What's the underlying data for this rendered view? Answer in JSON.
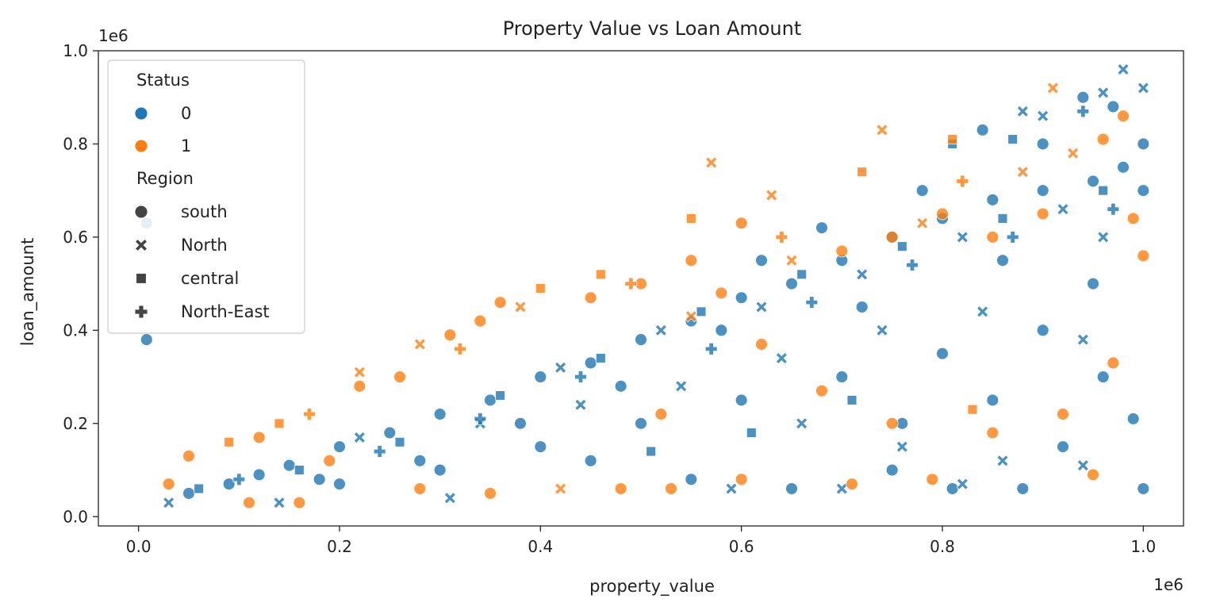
{
  "chart_data": {
    "type": "scatter",
    "title": "Property Value vs Loan Amount",
    "xlabel": "property_value",
    "ylabel": "loan_amount",
    "x_scale_label": "1e6",
    "y_scale_label": "1e6",
    "xlim": [
      -0.04,
      1.04
    ],
    "ylim": [
      -0.02,
      1.0
    ],
    "xticks": [
      0.0,
      0.2,
      0.4,
      0.6,
      0.8,
      1.0
    ],
    "xtick_labels": [
      "0.0",
      "0.2",
      "0.4",
      "0.6",
      "0.8",
      "1.0"
    ],
    "yticks": [
      0.0,
      0.2,
      0.4,
      0.6,
      0.8,
      1.0
    ],
    "ytick_labels": [
      "0.0",
      "0.2",
      "0.4",
      "0.6",
      "0.8",
      "1.0"
    ],
    "grid": false,
    "legend_position": "top-left",
    "hue": {
      "title": "Status",
      "levels": [
        {
          "label": "0",
          "color": "#1f77b4"
        },
        {
          "label": "1",
          "color": "#ff7f0e"
        }
      ]
    },
    "style": {
      "title": "Region",
      "levels": [
        {
          "label": "south",
          "marker": "circle"
        },
        {
          "label": "North",
          "marker": "x"
        },
        {
          "label": "central",
          "marker": "square"
        },
        {
          "label": "North-East",
          "marker": "plus"
        }
      ]
    },
    "series": [
      {
        "status": "0",
        "region": "south",
        "points": [
          [
            0.008,
            0.63
          ],
          [
            0.008,
            0.38
          ],
          [
            0.05,
            0.05
          ],
          [
            0.09,
            0.07
          ],
          [
            0.12,
            0.09
          ],
          [
            0.15,
            0.11
          ],
          [
            0.2,
            0.15
          ],
          [
            0.25,
            0.18
          ],
          [
            0.3,
            0.22
          ],
          [
            0.35,
            0.25
          ],
          [
            0.4,
            0.3
          ],
          [
            0.45,
            0.33
          ],
          [
            0.5,
            0.38
          ],
          [
            0.55,
            0.42
          ],
          [
            0.6,
            0.47
          ],
          [
            0.65,
            0.5
          ],
          [
            0.7,
            0.55
          ],
          [
            0.75,
            0.6
          ],
          [
            0.8,
            0.64
          ],
          [
            0.85,
            0.68
          ],
          [
            0.9,
            0.7
          ],
          [
            0.95,
            0.72
          ],
          [
            1.0,
            0.7
          ],
          [
            0.84,
            0.83
          ],
          [
            0.9,
            0.8
          ],
          [
            0.94,
            0.9
          ],
          [
            0.97,
            0.88
          ],
          [
            1.0,
            0.8
          ],
          [
            0.98,
            0.75
          ],
          [
            0.45,
            0.12
          ],
          [
            0.55,
            0.08
          ],
          [
            0.65,
            0.06
          ],
          [
            0.75,
            0.1
          ],
          [
            0.81,
            0.06
          ],
          [
            0.88,
            0.06
          ],
          [
            1.0,
            0.06
          ],
          [
            0.99,
            0.21
          ],
          [
            0.6,
            0.25
          ],
          [
            0.7,
            0.3
          ],
          [
            0.8,
            0.35
          ],
          [
            0.9,
            0.4
          ],
          [
            0.95,
            0.5
          ],
          [
            0.85,
            0.25
          ],
          [
            0.5,
            0.2
          ],
          [
            0.4,
            0.15
          ],
          [
            0.3,
            0.1
          ],
          [
            0.2,
            0.07
          ],
          [
            0.92,
            0.15
          ],
          [
            0.72,
            0.45
          ],
          [
            0.62,
            0.55
          ],
          [
            0.78,
            0.7
          ],
          [
            0.68,
            0.62
          ],
          [
            0.58,
            0.4
          ],
          [
            0.48,
            0.28
          ],
          [
            0.38,
            0.2
          ],
          [
            0.28,
            0.12
          ],
          [
            0.18,
            0.08
          ],
          [
            0.96,
            0.3
          ],
          [
            0.86,
            0.55
          ],
          [
            0.76,
            0.2
          ]
        ]
      },
      {
        "status": "0",
        "region": "North",
        "points": [
          [
            0.03,
            0.03
          ],
          [
            0.14,
            0.03
          ],
          [
            0.31,
            0.04
          ],
          [
            0.98,
            0.96
          ],
          [
            1.0,
            0.92
          ],
          [
            0.88,
            0.87
          ],
          [
            0.9,
            0.86
          ],
          [
            0.96,
            0.91
          ],
          [
            0.22,
            0.17
          ],
          [
            0.42,
            0.32
          ],
          [
            0.52,
            0.4
          ],
          [
            0.62,
            0.45
          ],
          [
            0.72,
            0.52
          ],
          [
            0.82,
            0.6
          ],
          [
            0.92,
            0.66
          ],
          [
            0.96,
            0.6
          ],
          [
            0.66,
            0.2
          ],
          [
            0.76,
            0.15
          ],
          [
            0.86,
            0.12
          ],
          [
            0.94,
            0.11
          ],
          [
            0.59,
            0.06
          ],
          [
            0.7,
            0.06
          ],
          [
            0.82,
            0.07
          ],
          [
            0.34,
            0.2
          ],
          [
            0.44,
            0.24
          ],
          [
            0.54,
            0.28
          ],
          [
            0.64,
            0.34
          ],
          [
            0.74,
            0.4
          ],
          [
            0.84,
            0.44
          ],
          [
            0.94,
            0.38
          ]
        ]
      },
      {
        "status": "0",
        "region": "central",
        "points": [
          [
            0.06,
            0.06
          ],
          [
            0.16,
            0.1
          ],
          [
            0.26,
            0.16
          ],
          [
            0.36,
            0.26
          ],
          [
            0.46,
            0.34
          ],
          [
            0.56,
            0.44
          ],
          [
            0.66,
            0.52
          ],
          [
            0.76,
            0.58
          ],
          [
            0.86,
            0.64
          ],
          [
            0.96,
            0.7
          ],
          [
            0.81,
            0.8
          ],
          [
            0.87,
            0.81
          ],
          [
            0.71,
            0.25
          ],
          [
            0.61,
            0.18
          ],
          [
            0.51,
            0.14
          ]
        ]
      },
      {
        "status": "0",
        "region": "North-East",
        "points": [
          [
            0.1,
            0.08
          ],
          [
            0.24,
            0.14
          ],
          [
            0.34,
            0.21
          ],
          [
            0.44,
            0.3
          ],
          [
            0.57,
            0.36
          ],
          [
            0.67,
            0.46
          ],
          [
            0.77,
            0.54
          ],
          [
            0.87,
            0.6
          ],
          [
            0.94,
            0.87
          ],
          [
            0.97,
            0.66
          ]
        ]
      },
      {
        "status": "1",
        "region": "south",
        "points": [
          [
            0.05,
            0.13
          ],
          [
            0.03,
            0.07
          ],
          [
            0.12,
            0.17
          ],
          [
            0.16,
            0.03
          ],
          [
            0.22,
            0.28
          ],
          [
            0.26,
            0.3
          ],
          [
            0.31,
            0.39
          ],
          [
            0.34,
            0.42
          ],
          [
            0.36,
            0.46
          ],
          [
            0.45,
            0.47
          ],
          [
            0.5,
            0.5
          ],
          [
            0.55,
            0.55
          ],
          [
            0.6,
            0.63
          ],
          [
            0.7,
            0.57
          ],
          [
            0.75,
            0.6
          ],
          [
            0.8,
            0.65
          ],
          [
            0.85,
            0.6
          ],
          [
            0.9,
            0.65
          ],
          [
            0.96,
            0.81
          ],
          [
            0.98,
            0.86
          ],
          [
            0.99,
            0.64
          ],
          [
            1.0,
            0.56
          ],
          [
            0.95,
            0.09
          ],
          [
            0.79,
            0.08
          ],
          [
            0.71,
            0.07
          ],
          [
            0.6,
            0.08
          ],
          [
            0.53,
            0.06
          ],
          [
            0.48,
            0.06
          ],
          [
            0.35,
            0.05
          ],
          [
            0.28,
            0.06
          ],
          [
            0.19,
            0.12
          ],
          [
            0.11,
            0.03
          ],
          [
            0.68,
            0.27
          ],
          [
            0.75,
            0.2
          ],
          [
            0.85,
            0.18
          ],
          [
            0.92,
            0.22
          ],
          [
            0.97,
            0.33
          ],
          [
            0.62,
            0.37
          ],
          [
            0.58,
            0.48
          ],
          [
            0.52,
            0.22
          ]
        ]
      },
      {
        "status": "1",
        "region": "North",
        "points": [
          [
            0.57,
            0.76
          ],
          [
            0.91,
            0.92
          ],
          [
            0.74,
            0.83
          ],
          [
            0.63,
            0.69
          ],
          [
            0.28,
            0.37
          ],
          [
            0.38,
            0.45
          ],
          [
            0.22,
            0.31
          ],
          [
            0.42,
            0.06
          ],
          [
            0.55,
            0.43
          ],
          [
            0.65,
            0.55
          ],
          [
            0.78,
            0.63
          ],
          [
            0.88,
            0.74
          ],
          [
            0.93,
            0.78
          ]
        ]
      },
      {
        "status": "1",
        "region": "central",
        "points": [
          [
            0.09,
            0.16
          ],
          [
            0.14,
            0.2
          ],
          [
            0.55,
            0.64
          ],
          [
            0.72,
            0.74
          ],
          [
            0.81,
            0.81
          ],
          [
            0.4,
            0.49
          ],
          [
            0.46,
            0.52
          ],
          [
            0.83,
            0.23
          ]
        ]
      },
      {
        "status": "1",
        "region": "North-East",
        "points": [
          [
            0.17,
            0.22
          ],
          [
            0.32,
            0.36
          ],
          [
            0.49,
            0.5
          ],
          [
            0.64,
            0.6
          ],
          [
            0.82,
            0.72
          ]
        ]
      }
    ]
  }
}
